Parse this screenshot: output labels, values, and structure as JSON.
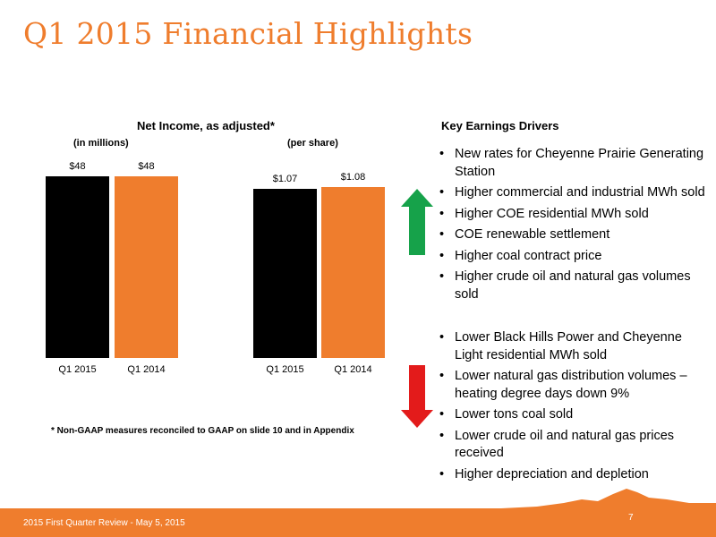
{
  "title": "Q1 2015 Financial Highlights",
  "chart": {
    "heading": "Net Income, as adjusted*",
    "left_unit": "(in millions)",
    "right_unit": "(per share)",
    "colors": {
      "q1_2015": "#000000",
      "q1_2014": "#ef7d2d"
    }
  },
  "chart_data": [
    {
      "type": "bar",
      "title": "Net Income, as adjusted*",
      "subtitle": "(in millions)",
      "categories": [
        "Q1 2015",
        "Q1 2014"
      ],
      "values": [
        48,
        48
      ],
      "data_labels": [
        "$48",
        "$48"
      ]
    },
    {
      "type": "bar",
      "subtitle": "(per share)",
      "categories": [
        "Q1 2015",
        "Q1 2014"
      ],
      "values": [
        1.07,
        1.08
      ],
      "data_labels": [
        "$1.07",
        "$1.08"
      ]
    }
  ],
  "footnote": "* Non-GAAP measures reconciled to GAAP on slide 10  and in Appendix",
  "drivers": {
    "heading": "Key Earnings Drivers",
    "positive": [
      "New rates for Cheyenne Prairie Generating Station",
      "Higher commercial and industrial MWh sold",
      "Higher COE residential MWh sold",
      "COE renewable settlement",
      "Higher coal contract price",
      "Higher crude oil and natural gas volumes sold"
    ],
    "negative": [
      "Lower Black Hills Power and Cheyenne Light residential MWh sold",
      "Lower natural gas distribution volumes – heating degree days down 9%",
      "Lower tons coal sold",
      "Lower crude oil and natural gas prices received",
      "Higher depreciation and depletion"
    ],
    "up_arrow_icon": "up-arrow-icon",
    "down_arrow_icon": "down-arrow-icon",
    "up_color": "#16a24a",
    "down_color": "#e31b1b"
  },
  "footer": {
    "left": "2015 First Quarter Review - May 5, 2015",
    "page": "7",
    "color": "#ef7d2d"
  }
}
